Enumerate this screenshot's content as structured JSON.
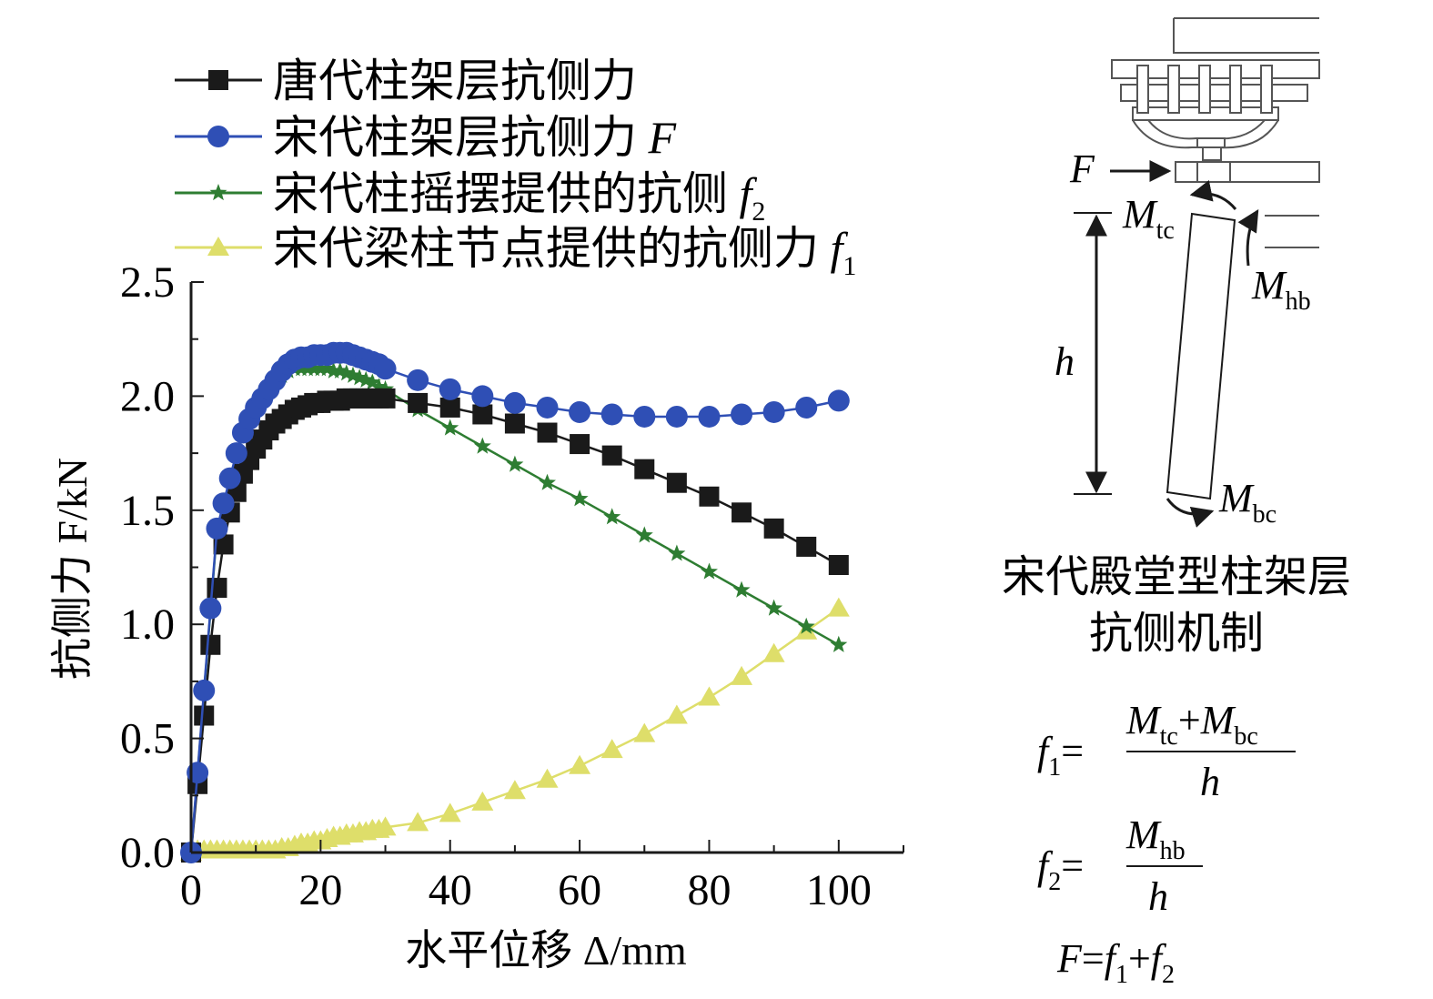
{
  "chart_data": {
    "type": "line",
    "xlabel": "水平位移 Δ/mm",
    "ylabel": "抗侧力 F/kN",
    "xlim": [
      0,
      110
    ],
    "ylim": [
      0,
      2.5
    ],
    "xticks": [
      "0",
      "20",
      "40",
      "60",
      "80",
      "100"
    ],
    "yticks": [
      "0.0",
      "0.5",
      "1.0",
      "1.5",
      "2.0",
      "2.5"
    ],
    "legend_position": "top-left",
    "series": [
      {
        "name": "唐代柱架层抗侧力",
        "color": "#1a1a1a",
        "marker": "square",
        "x": [
          0,
          1,
          2,
          3,
          4,
          5,
          6,
          7,
          8,
          9,
          10,
          11,
          12,
          13,
          14,
          15,
          16,
          17,
          18,
          19,
          20,
          21,
          22,
          23,
          24,
          25,
          26,
          27,
          28,
          29,
          30,
          35,
          40,
          45,
          50,
          55,
          60,
          65,
          70,
          75,
          80,
          85,
          90,
          95,
          100
        ],
        "y": [
          0.0,
          0.3,
          0.6,
          0.91,
          1.16,
          1.35,
          1.49,
          1.58,
          1.66,
          1.72,
          1.77,
          1.81,
          1.85,
          1.88,
          1.9,
          1.92,
          1.94,
          1.95,
          1.96,
          1.97,
          1.97,
          1.98,
          1.98,
          1.98,
          1.99,
          1.99,
          1.99,
          1.99,
          1.99,
          1.99,
          1.99,
          1.97,
          1.95,
          1.92,
          1.88,
          1.84,
          1.79,
          1.74,
          1.68,
          1.62,
          1.56,
          1.49,
          1.42,
          1.34,
          1.26
        ]
      },
      {
        "name": "宋代柱架层抗侧力 F",
        "color": "#2f4fb5",
        "marker": "circle",
        "x": [
          0,
          1,
          2,
          3,
          4,
          5,
          6,
          7,
          8,
          9,
          10,
          11,
          12,
          13,
          14,
          15,
          16,
          17,
          18,
          19,
          20,
          21,
          22,
          23,
          24,
          25,
          26,
          27,
          28,
          29,
          30,
          35,
          40,
          45,
          50,
          55,
          60,
          65,
          70,
          75,
          80,
          85,
          90,
          95,
          100
        ],
        "y": [
          0.0,
          0.35,
          0.71,
          1.07,
          1.42,
          1.53,
          1.64,
          1.75,
          1.84,
          1.9,
          1.95,
          1.99,
          2.03,
          2.07,
          2.11,
          2.14,
          2.16,
          2.17,
          2.17,
          2.18,
          2.18,
          2.18,
          2.19,
          2.19,
          2.19,
          2.18,
          2.17,
          2.16,
          2.15,
          2.14,
          2.12,
          2.07,
          2.03,
          2.0,
          1.97,
          1.95,
          1.93,
          1.92,
          1.91,
          1.91,
          1.91,
          1.92,
          1.93,
          1.95,
          1.98
        ]
      },
      {
        "name": "宋代柱摇摆提供的抗侧 f2",
        "color": "#2e7d32",
        "marker": "star",
        "x": [
          0,
          1,
          2,
          3,
          4,
          5,
          6,
          7,
          8,
          9,
          10,
          11,
          12,
          13,
          14,
          15,
          16,
          17,
          18,
          19,
          20,
          21,
          22,
          23,
          24,
          25,
          26,
          27,
          28,
          29,
          30,
          35,
          40,
          45,
          50,
          55,
          60,
          65,
          70,
          75,
          80,
          85,
          90,
          95,
          100
        ],
        "y": [
          0.0,
          0.34,
          0.7,
          1.06,
          1.41,
          1.52,
          1.63,
          1.74,
          1.83,
          1.89,
          1.94,
          1.98,
          2.02,
          2.06,
          2.09,
          2.11,
          2.12,
          2.12,
          2.12,
          2.12,
          2.12,
          2.12,
          2.11,
          2.11,
          2.1,
          2.09,
          2.08,
          2.07,
          2.06,
          2.04,
          2.03,
          1.94,
          1.86,
          1.78,
          1.7,
          1.62,
          1.55,
          1.47,
          1.39,
          1.31,
          1.23,
          1.15,
          1.07,
          0.99,
          0.91
        ]
      },
      {
        "name": "宋代梁柱节点提供的抗侧力 f1",
        "color": "#dede6a",
        "marker": "triangle",
        "x": [
          0,
          1,
          2,
          3,
          4,
          5,
          6,
          7,
          8,
          9,
          10,
          11,
          12,
          13,
          14,
          15,
          16,
          17,
          18,
          19,
          20,
          21,
          22,
          23,
          24,
          25,
          26,
          27,
          28,
          29,
          30,
          35,
          40,
          45,
          50,
          55,
          60,
          65,
          70,
          75,
          80,
          85,
          90,
          95,
          100
        ],
        "y": [
          0.0,
          0.01,
          0.01,
          0.01,
          0.01,
          0.01,
          0.01,
          0.01,
          0.01,
          0.01,
          0.01,
          0.01,
          0.01,
          0.01,
          0.02,
          0.02,
          0.03,
          0.04,
          0.04,
          0.05,
          0.05,
          0.06,
          0.07,
          0.07,
          0.08,
          0.08,
          0.09,
          0.09,
          0.1,
          0.1,
          0.11,
          0.13,
          0.17,
          0.22,
          0.27,
          0.32,
          0.38,
          0.45,
          0.52,
          0.6,
          0.68,
          0.77,
          0.87,
          0.97,
          1.07
        ]
      }
    ]
  },
  "diagram": {
    "title_line1": "宋代殿堂型柱架层",
    "title_line2": "抗侧机制",
    "force_label": "F",
    "height_label": "h",
    "moment_tc": "M",
    "moment_tc_sub": "tc",
    "moment_hb": "M",
    "moment_hb_sub": "hb",
    "moment_bc": "M",
    "moment_bc_sub": "bc"
  },
  "formulas": {
    "f1_lhs": "f",
    "f1_lhs_sub": "1",
    "equals": "=",
    "f1_num_a": "M",
    "f1_num_a_sub": "tc",
    "plus": "+",
    "f1_num_b": "M",
    "f1_num_b_sub": "bc",
    "f1_den": "h",
    "f2_lhs": "f",
    "f2_lhs_sub": "2",
    "f2_num": "M",
    "f2_num_sub": "hb",
    "f2_den": "h",
    "sum_F": "F",
    "sum_f1": "f",
    "sum_f1_sub": "1",
    "sum_f2": "f",
    "sum_f2_sub": "2"
  }
}
